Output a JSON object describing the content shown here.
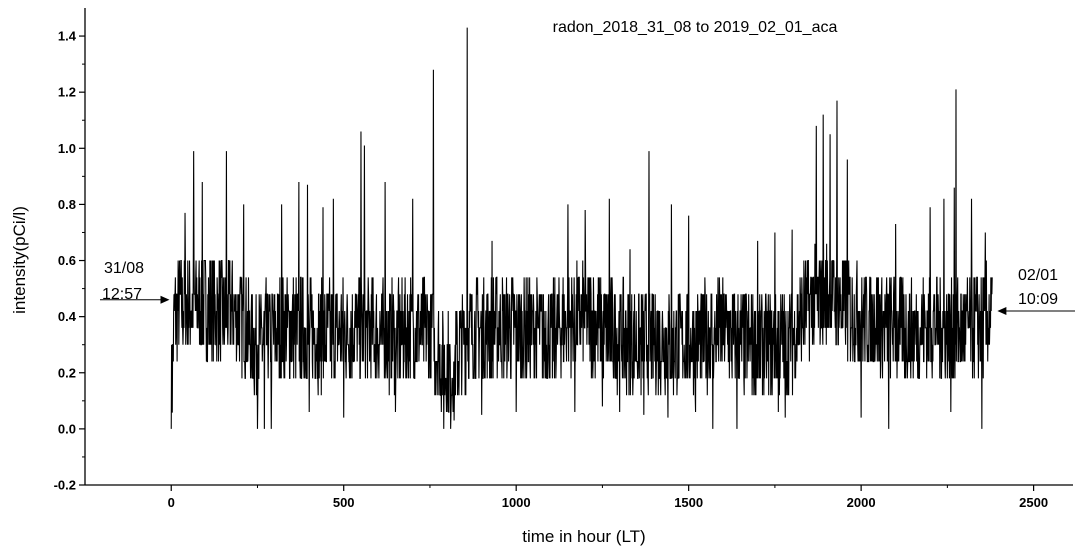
{
  "chart_data": {
    "type": "line",
    "title": "radon_2018_31_08 to 2019_02_01_aca",
    "xlabel": "time in hour (LT)",
    "ylabel": "intensity(pCi/l)",
    "xlim": [
      -250,
      2620
    ],
    "ylim": [
      -0.2,
      1.5
    ],
    "x_ticks": [
      0,
      500,
      1000,
      1500,
      2000,
      2500
    ],
    "y_ticks": [
      -0.2,
      0.0,
      0.2,
      0.4,
      0.6,
      0.8,
      1.0,
      1.2,
      1.4
    ],
    "x_range": [
      0,
      2380
    ],
    "grid": false,
    "color": "#000000",
    "series": [
      {
        "anchors": [
          [
            0,
            0.1
          ],
          [
            10,
            0.42
          ],
          [
            30,
            0.44
          ],
          [
            60,
            0.45
          ],
          [
            100,
            0.43
          ],
          [
            150,
            0.42
          ],
          [
            200,
            0.4
          ],
          [
            240,
            0.3
          ],
          [
            270,
            0.32
          ],
          [
            300,
            0.35
          ],
          [
            350,
            0.36
          ],
          [
            400,
            0.34
          ],
          [
            450,
            0.33
          ],
          [
            500,
            0.35
          ],
          [
            550,
            0.36
          ],
          [
            600,
            0.34
          ],
          [
            650,
            0.33
          ],
          [
            700,
            0.36
          ],
          [
            750,
            0.35
          ],
          [
            790,
            0.22
          ],
          [
            830,
            0.26
          ],
          [
            850,
            0.33
          ],
          [
            900,
            0.35
          ],
          [
            950,
            0.37
          ],
          [
            1000,
            0.36
          ],
          [
            1050,
            0.35
          ],
          [
            1100,
            0.32
          ],
          [
            1150,
            0.38
          ],
          [
            1200,
            0.4
          ],
          [
            1250,
            0.36
          ],
          [
            1300,
            0.33
          ],
          [
            1350,
            0.3
          ],
          [
            1400,
            0.32
          ],
          [
            1450,
            0.3
          ],
          [
            1500,
            0.32
          ],
          [
            1550,
            0.33
          ],
          [
            1600,
            0.35
          ],
          [
            1650,
            0.31
          ],
          [
            1700,
            0.3
          ],
          [
            1750,
            0.3
          ],
          [
            1800,
            0.32
          ],
          [
            1850,
            0.45
          ],
          [
            1900,
            0.48
          ],
          [
            1950,
            0.43
          ],
          [
            2000,
            0.4
          ],
          [
            2050,
            0.38
          ],
          [
            2100,
            0.36
          ],
          [
            2150,
            0.34
          ],
          [
            2200,
            0.38
          ],
          [
            2250,
            0.36
          ],
          [
            2300,
            0.35
          ],
          [
            2350,
            0.38
          ],
          [
            2380,
            0.4
          ]
        ],
        "peaks": [
          [
            40,
            0.77
          ],
          [
            65,
            0.99
          ],
          [
            90,
            0.88
          ],
          [
            160,
            0.99
          ],
          [
            210,
            0.8
          ],
          [
            320,
            0.8
          ],
          [
            370,
            0.88
          ],
          [
            395,
            0.87
          ],
          [
            440,
            0.79
          ],
          [
            470,
            0.82
          ],
          [
            550,
            1.06
          ],
          [
            560,
            1.01
          ],
          [
            620,
            0.88
          ],
          [
            700,
            0.82
          ],
          [
            760,
            1.28
          ],
          [
            858,
            1.43
          ],
          [
            930,
            0.67
          ],
          [
            1000,
            0.72
          ],
          [
            1150,
            0.8
          ],
          [
            1200,
            0.78
          ],
          [
            1270,
            0.82
          ],
          [
            1330,
            0.64
          ],
          [
            1385,
            0.99
          ],
          [
            1450,
            0.8
          ],
          [
            1500,
            0.76
          ],
          [
            1570,
            0.86
          ],
          [
            1640,
            0.9
          ],
          [
            1700,
            0.67
          ],
          [
            1750,
            0.7
          ],
          [
            1800,
            0.71
          ],
          [
            1870,
            1.08
          ],
          [
            1890,
            1.12
          ],
          [
            1910,
            1.05
          ],
          [
            1930,
            1.17
          ],
          [
            1960,
            0.96
          ],
          [
            2000,
            0.72
          ],
          [
            2100,
            0.73
          ],
          [
            2200,
            0.79
          ],
          [
            2240,
            0.82
          ],
          [
            2270,
            0.86
          ],
          [
            2275,
            1.21
          ],
          [
            2320,
            0.82
          ],
          [
            2360,
            0.7
          ]
        ],
        "troughs": [
          [
            250,
            0.0
          ],
          [
            270,
            0.0
          ],
          [
            290,
            0.0
          ],
          [
            400,
            0.06
          ],
          [
            500,
            0.04
          ],
          [
            650,
            0.06
          ],
          [
            790,
            0.0
          ],
          [
            810,
            0.0
          ],
          [
            820,
            0.03
          ],
          [
            900,
            0.05
          ],
          [
            1000,
            0.06
          ],
          [
            1170,
            0.06
          ],
          [
            1250,
            0.08
          ],
          [
            1300,
            0.06
          ],
          [
            1370,
            0.05
          ],
          [
            1440,
            0.04
          ],
          [
            1520,
            0.06
          ],
          [
            1570,
            0.0
          ],
          [
            1640,
            0.0
          ],
          [
            1760,
            0.06
          ],
          [
            1780,
            0.04
          ],
          [
            2000,
            0.04
          ],
          [
            2080,
            0.0
          ],
          [
            2260,
            0.06
          ],
          [
            2350,
            0.0
          ]
        ],
        "noise_amplitude": 0.19
      }
    ],
    "annotations": [
      {
        "line1": "31/08",
        "line2": "12:57",
        "y": 0.46,
        "direction": "right"
      },
      {
        "line1": "02/01",
        "line2": "10:09",
        "y": 0.42,
        "direction": "left"
      }
    ]
  }
}
